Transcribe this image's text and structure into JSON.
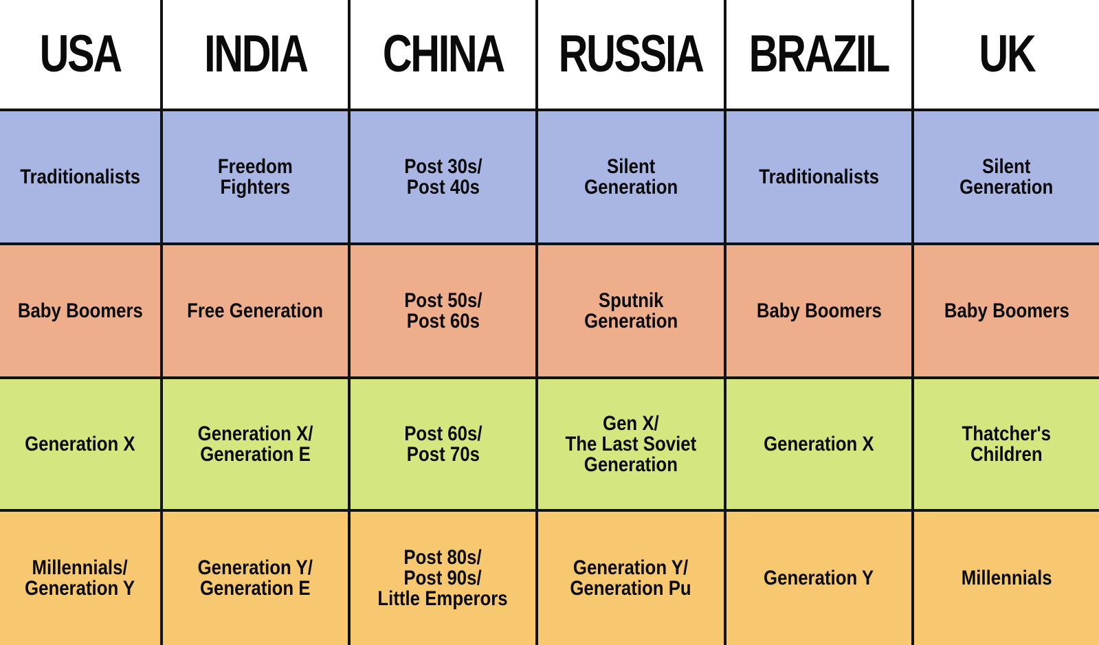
{
  "table": {
    "columns": [
      "USA",
      "INDIA",
      "CHINA",
      "RUSSIA",
      "BRAZIL",
      "UK"
    ],
    "rows": [
      {
        "color": "#a9b6e4",
        "cells": [
          "Traditionalists",
          "Freedom\nFighters",
          "Post 30s/\nPost 40s",
          "Silent\nGeneration",
          "Traditionalists",
          "Silent\nGeneration"
        ]
      },
      {
        "color": "#eeae8c",
        "cells": [
          "Baby Boomers",
          "Free Generation",
          "Post 50s/\nPost 60s",
          "Sputnik\nGeneration",
          "Baby Boomers",
          "Baby Boomers"
        ]
      },
      {
        "color": "#d4e680",
        "cells": [
          "Generation X",
          "Generation X/\nGeneration E",
          "Post 60s/\nPost 70s",
          "Gen X/\nThe Last Soviet\nGeneration",
          "Generation X",
          "Thatcher's\nChildren"
        ]
      },
      {
        "color": "#f7c870",
        "cells": [
          "Millennials/\nGeneration Y",
          "Generation Y/\nGeneration E",
          "Post 80s/\nPost 90s/\nLittle Emperors",
          "Generation Y/\nGeneration Pu",
          "Generation Y",
          "Millennials"
        ]
      }
    ]
  }
}
